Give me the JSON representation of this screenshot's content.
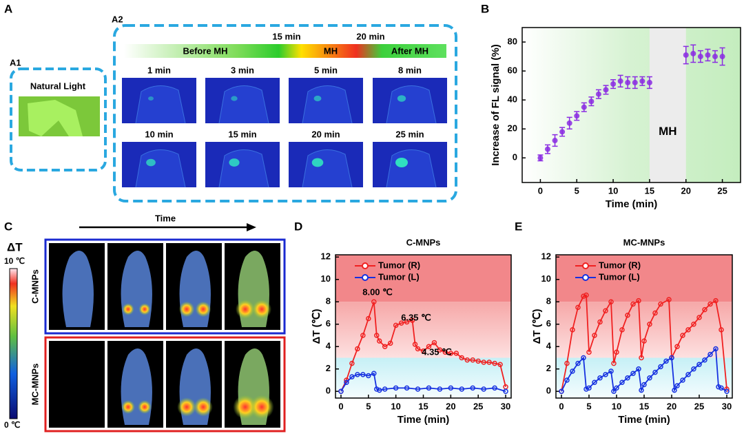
{
  "panel_A": {
    "label": "A",
    "a1": {
      "label": "A1",
      "caption": "Natural Light"
    },
    "a2": {
      "label": "A2",
      "timeline": [
        "Before MH",
        "MH",
        "After MH"
      ],
      "markers": [
        "15 min",
        "20 min"
      ],
      "frames": [
        "1 min",
        "3 min",
        "5 min",
        "8 min",
        "10 min",
        "15 min",
        "20 min",
        "25 min"
      ]
    }
  },
  "panel_C": {
    "label": "C",
    "arrow_label": "Time",
    "scale_title": "ΔT",
    "scale_max": "10 ℃",
    "scale_min": "0 ℃",
    "rows": [
      "C-MNPs",
      "MC-MNPs"
    ]
  },
  "chart_data": [
    {
      "type": "scatter",
      "panel_label": "B",
      "xlabel": "Time (min)",
      "ylabel": "Increase of FL signal (%)",
      "annotation": "MH",
      "color": "#8a2be2",
      "xlim": [
        -2.5,
        27.5
      ],
      "ylim": [
        -17,
        90
      ],
      "xticks": [
        0,
        5,
        10,
        15,
        20,
        25
      ],
      "yticks": [
        0,
        20,
        40,
        60,
        80
      ],
      "regions": [
        {
          "from": 15,
          "to": 20
        }
      ],
      "x": [
        0,
        1,
        2,
        3,
        4,
        5,
        6,
        7,
        8,
        9,
        10,
        11,
        12,
        13,
        14,
        15,
        20,
        21,
        22,
        23,
        24,
        25
      ],
      "values": [
        0,
        6,
        12,
        18,
        24,
        29,
        35,
        39,
        44,
        47,
        51,
        53,
        52,
        52,
        53,
        52,
        71,
        72,
        70,
        71,
        70,
        70
      ],
      "errors": [
        2,
        3,
        4,
        3,
        4,
        3,
        3,
        3,
        3,
        3,
        3,
        4,
        4,
        4,
        3,
        4,
        6,
        6,
        4,
        4,
        4,
        6
      ]
    },
    {
      "type": "line",
      "panel_label": "D",
      "title": "C-MNPs",
      "xlabel": "Time (min)",
      "ylabel": "ΔT (℃)",
      "xlim": [
        -1,
        31
      ],
      "ylim": [
        -0.6,
        12.2
      ],
      "xticks": [
        0,
        5,
        10,
        15,
        20,
        25,
        30
      ],
      "yticks": [
        0,
        2,
        4,
        6,
        8,
        10,
        12
      ],
      "thresholds": [
        3,
        8
      ],
      "annotations": [
        "8.00 ℃",
        "6.35 ℃",
        "4.35 ℃"
      ],
      "series": [
        {
          "name": "Tumor (R)",
          "color": "#f02020",
          "x": [
            0,
            1,
            2,
            3,
            4,
            5,
            6,
            6.5,
            7,
            8,
            9,
            10,
            11,
            12,
            13,
            13.5,
            14,
            15,
            16,
            17,
            18,
            19,
            20,
            21,
            22,
            23,
            24,
            25,
            26,
            27,
            28,
            29,
            30
          ],
          "values": [
            0,
            1,
            2.5,
            3.8,
            5,
            6.5,
            8,
            5,
            4.5,
            4,
            4.3,
            5.9,
            6.1,
            6.2,
            6.35,
            4.2,
            3.8,
            3.6,
            4,
            4.35,
            3.7,
            3.5,
            3.4,
            3.4,
            3,
            2.8,
            2.8,
            2.7,
            2.6,
            2.6,
            2.5,
            2.4,
            0.4
          ]
        },
        {
          "name": "Tumor (L)",
          "color": "#1530e0",
          "x": [
            0,
            1,
            2,
            3,
            4,
            5,
            6,
            6.5,
            7,
            8,
            10,
            12,
            14,
            16,
            18,
            20,
            22,
            24,
            26,
            28,
            30
          ],
          "values": [
            0,
            0.8,
            1.3,
            1.5,
            1.5,
            1.4,
            1.6,
            0.2,
            0.1,
            0.2,
            0.3,
            0.3,
            0.2,
            0.3,
            0.2,
            0.3,
            0.2,
            0.3,
            0.2,
            0.3,
            0
          ]
        }
      ]
    },
    {
      "type": "line",
      "panel_label": "E",
      "title": "MC-MNPs",
      "xlabel": "Time (min)",
      "ylabel": "ΔT (℃)",
      "xlim": [
        -1,
        31
      ],
      "ylim": [
        -0.6,
        12.2
      ],
      "xticks": [
        0,
        5,
        10,
        15,
        20,
        25,
        30
      ],
      "yticks": [
        0,
        2,
        4,
        6,
        8,
        10,
        12
      ],
      "thresholds": [
        3,
        8
      ],
      "series": [
        {
          "name": "Tumor (R)",
          "color": "#f02020",
          "x": [
            0,
            1,
            2,
            3,
            4,
            4.5,
            5,
            6,
            7,
            8,
            9,
            9.5,
            10,
            11,
            12,
            13,
            14,
            14.5,
            15,
            16,
            17,
            18,
            19.5,
            20,
            21,
            22,
            23,
            24,
            25,
            26,
            27,
            28,
            29,
            30
          ],
          "values": [
            0,
            2.5,
            5.5,
            7.5,
            8.5,
            8.6,
            3.5,
            5,
            6.2,
            7.2,
            8,
            2.5,
            3.5,
            5.5,
            6.8,
            7.8,
            8.1,
            3,
            4.5,
            6,
            7,
            7.8,
            8.2,
            3,
            4,
            5,
            5.5,
            6,
            6.6,
            7.3,
            7.8,
            8.1,
            5.5,
            0.2
          ]
        },
        {
          "name": "Tumor (L)",
          "color": "#1530e0",
          "x": [
            0,
            1,
            2,
            3,
            4,
            4.5,
            5,
            6,
            7,
            8,
            9,
            9.5,
            10,
            11,
            12,
            13,
            14,
            14.5,
            15,
            16,
            17,
            18,
            19,
            20,
            20.5,
            21,
            22,
            23,
            24,
            25,
            26,
            27,
            28,
            28.5,
            29,
            30
          ],
          "values": [
            0,
            1,
            1.8,
            2.5,
            3,
            0.2,
            0.3,
            0.8,
            1.2,
            1.5,
            1.8,
            0,
            0.3,
            0.8,
            1.2,
            1.6,
            2,
            0.1,
            0.6,
            1.2,
            1.7,
            2.2,
            2.7,
            3,
            0.1,
            0.5,
            1,
            1.5,
            2,
            2.4,
            2.8,
            3.3,
            3.8,
            0.4,
            0.3,
            0
          ]
        }
      ]
    }
  ]
}
